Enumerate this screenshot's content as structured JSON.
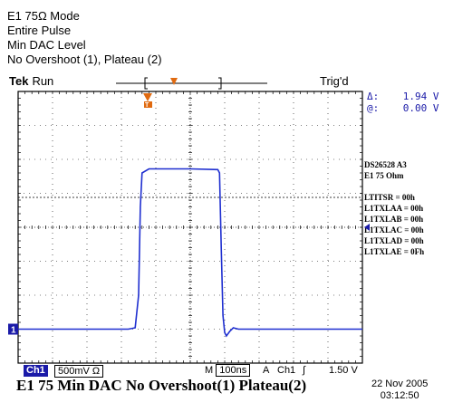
{
  "header": {
    "line1": "E1 75Ω Mode",
    "line2": "Entire Pulse",
    "line3": "Min DAC Level",
    "line4": "No Overshoot (1), Plateau (2)"
  },
  "scope": {
    "brand": "Tek",
    "status": "Run",
    "trigger_status": "Trig'd",
    "cursor_delta_label": "Δ:",
    "cursor_delta": "1.94 V",
    "cursor_at_label": "@:",
    "cursor_at": "0.00 V",
    "channel_label": "Ch1",
    "volts_per_div": "500mV Ω",
    "time_per_div": "100ns",
    "trigger_mode": "A",
    "trigger_source": "Ch1",
    "trigger_slope_glyph": "∫",
    "trigger_level": "1.50 V",
    "date": "22 Nov 2005",
    "time": "03:12:50",
    "colors": {
      "trace": "#1f2fd0",
      "graticule": "#000000",
      "trigger_marker": "#e06a10",
      "ch1_badge": "#1a1aa8"
    },
    "icons": [
      "trigger-position-icon",
      "ground-marker-icon",
      "trigger-level-arrow-icon",
      "trigger-slope-icon"
    ]
  },
  "side_panel": {
    "device": "DS26528  A3",
    "mode": "E1 75 Ohm",
    "registers": [
      "LTITSR = 00h",
      "L1TXLAA = 00h",
      "L1TXLAB = 00h",
      "L1TXLAC = 00h",
      "L1TXLAD = 00h",
      "L1TXLAE = 0Fh"
    ]
  },
  "chart_data": {
    "type": "line",
    "title": "E1 75 Min DAC No Overshoot(1) Plateau(2)",
    "xlabel": "",
    "ylabel": "",
    "x_unit": "ns",
    "y_unit": "V",
    "xlim": [
      0,
      1000
    ],
    "ylim": [
      -0.5,
      3.5
    ],
    "grid": true,
    "series": [
      {
        "x": [
          0,
          320,
          340,
          350,
          355,
          360,
          380,
          500,
          580,
          585,
          590,
          595,
          600,
          605,
          615,
          625,
          640,
          660,
          700,
          1000
        ],
        "values": [
          0.0,
          0.0,
          0.02,
          0.5,
          1.8,
          2.3,
          2.36,
          2.36,
          2.35,
          2.3,
          1.2,
          0.2,
          -0.05,
          -0.1,
          -0.03,
          0.02,
          0.0,
          0.0,
          0.0,
          0.0
        ]
      }
    ],
    "markers": {
      "ground_level_v": 0.0,
      "cursor_level_v": 1.94,
      "trigger_level_v": 1.5
    }
  }
}
